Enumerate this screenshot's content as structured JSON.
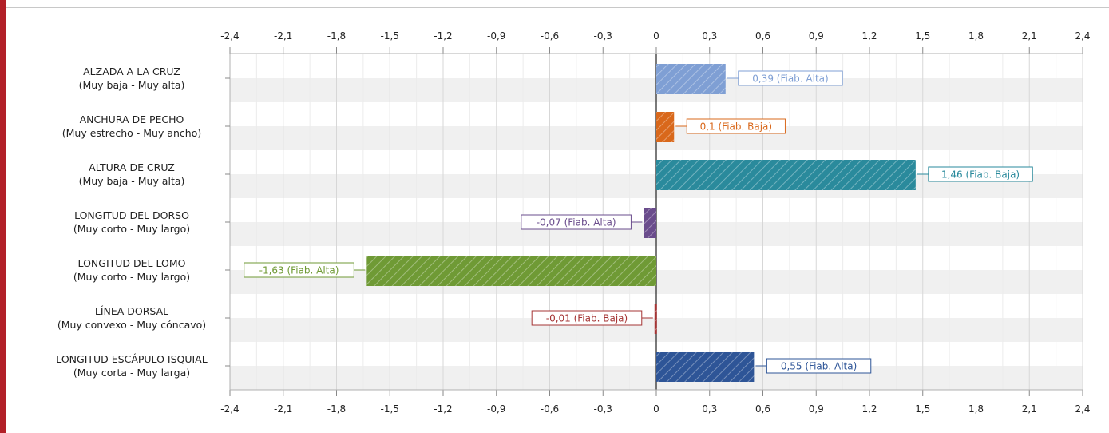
{
  "colors": {
    "left_accent": "#b22028",
    "band": "#f0f0f0",
    "grid": "#d7d7d7"
  },
  "chart_data": {
    "type": "bar",
    "orientation": "horizontal",
    "xlim": [
      -2.4,
      2.4
    ],
    "xticks": [
      "-2,4",
      "-2,1",
      "-1,8",
      "-1,5",
      "-1,2",
      "-0,9",
      "-0,6",
      "-0,3",
      "0",
      "0,3",
      "0,6",
      "0,9",
      "1,2",
      "1,5",
      "1,8",
      "2,1",
      "2,4"
    ],
    "xtick_values": [
      -2.4,
      -2.1,
      -1.8,
      -1.5,
      -1.2,
      -0.9,
      -0.6,
      -0.3,
      0,
      0.3,
      0.6,
      0.9,
      1.2,
      1.5,
      1.8,
      2.1,
      2.4
    ],
    "grid": true,
    "categories": [
      {
        "line1": "ALZADA A LA CRUZ",
        "line2": "(Muy baja - Muy alta)",
        "value": 0.39,
        "label": "0,39 (Fiab. Alta)",
        "color": "#7f9fd4"
      },
      {
        "line1": "ANCHURA DE PECHO",
        "line2": "(Muy estrecho - Muy ancho)",
        "value": 0.1,
        "label": "0,1 (Fiab. Baja)",
        "color": "#d9681b"
      },
      {
        "line1": "ALTURA DE CRUZ",
        "line2": "(Muy baja - Muy alta)",
        "value": 1.46,
        "label": "1,46 (Fiab. Baja)",
        "color": "#2a8a9c"
      },
      {
        "line1": "LONGITUD DEL DORSO",
        "line2": "(Muy corto - Muy largo)",
        "value": -0.07,
        "label": "-0,07 (Fiab. Alta)",
        "color": "#6a4c8c"
      },
      {
        "line1": "LONGITUD DEL LOMO",
        "line2": "(Muy corto - Muy largo)",
        "value": -1.63,
        "label": "-1,63 (Fiab. Alta)",
        "color": "#6f9a35"
      },
      {
        "line1": "LÍNEA DORSAL",
        "line2": "(Muy convexo - Muy cóncavo)",
        "value": -0.01,
        "label": "-0,01 (Fiab. Baja)",
        "color": "#a53434"
      },
      {
        "line1": "LONGITUD ESCÁPULO ISQUIAL",
        "line2": "(Muy corta - Muy larga)",
        "value": 0.55,
        "label": "0,55 (Fiab. Alta)",
        "color": "#2e5597"
      }
    ]
  }
}
